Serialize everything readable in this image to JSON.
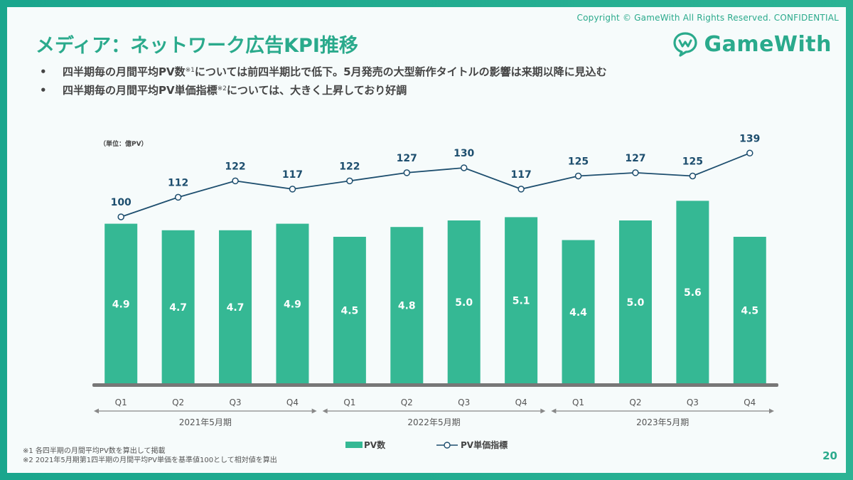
{
  "header": {
    "copyright": "Copyright © GameWith All Rights Reserved. CONFIDENTIAL",
    "title": "メディア：ネットワーク広告KPI推移",
    "logo_text": "GameWith"
  },
  "bullets": [
    {
      "text_before": "四半期毎の月間平均PV数",
      "note": "※1",
      "text_after": "については前四半期比で低下。5月発売の大型新作タイトルの影響は来期以降に見込む"
    },
    {
      "text_before": "四半期毎の月間平均PV単価指標",
      "note": "※2",
      "text_after": "については、大きく上昇しており好調"
    }
  ],
  "unit_label": "（単位：億PV）",
  "footnotes": [
    "※1 各四半期の月間平均PV数を算出して掲載",
    "※2 2021年5月期第1四半期の月間平均PV単価を基準値100として相対値を算出"
  ],
  "page_number": "20",
  "colors": {
    "accent": "#2aaa8c",
    "bar": "#35b894",
    "line": "#1d4e6e",
    "axis": "#777777"
  },
  "chart_data": {
    "type": "bar+line",
    "categories": [
      "Q1",
      "Q2",
      "Q3",
      "Q4",
      "Q1",
      "Q2",
      "Q3",
      "Q4",
      "Q1",
      "Q2",
      "Q3",
      "Q4"
    ],
    "periods": [
      {
        "label": "2021年5月期",
        "quarters": 4
      },
      {
        "label": "2022年5月期",
        "quarters": 4
      },
      {
        "label": "2023年5月期",
        "quarters": 4
      }
    ],
    "series": [
      {
        "name": "PV数",
        "type": "bar",
        "values": [
          4.9,
          4.7,
          4.7,
          4.9,
          4.5,
          4.8,
          5.0,
          5.1,
          4.4,
          5.0,
          5.6,
          4.5
        ]
      },
      {
        "name": "PV単価指標",
        "type": "line",
        "values": [
          100,
          112,
          122,
          117,
          122,
          127,
          130,
          117,
          125,
          127,
          125,
          139
        ]
      }
    ],
    "legend": {
      "position": "bottom-center",
      "items": [
        "PV数",
        "PV単価指標"
      ]
    }
  }
}
